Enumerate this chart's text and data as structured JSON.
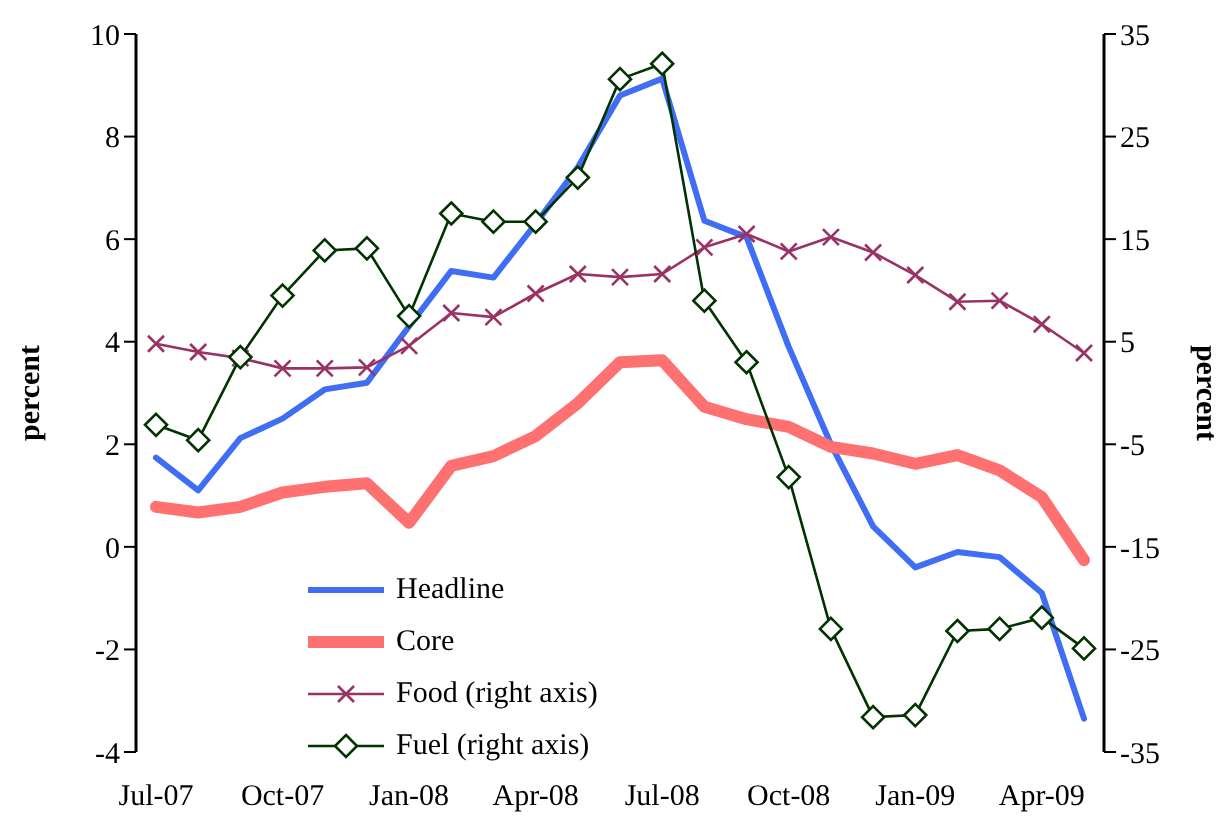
{
  "chart_data": {
    "type": "line",
    "ylabel": "percent",
    "y2label": "percent",
    "categories": [
      "Jul-07",
      null,
      null,
      "Oct-07",
      null,
      null,
      "Jan-08",
      null,
      null,
      "Apr-08",
      null,
      null,
      "Jul-08",
      null,
      null,
      "Oct-08",
      null,
      null,
      "Jan-09",
      null,
      null,
      "Apr-09",
      null
    ],
    "series": [
      {
        "name": "Headline",
        "color": "#3f6ef5",
        "marker": "none",
        "values": [
          1.74,
          1.1,
          2.12,
          2.5,
          3.07,
          3.2,
          4.3,
          5.38,
          5.25,
          6.3,
          7.4,
          8.8,
          9.13,
          6.36,
          6.04,
          3.9,
          2.0,
          0.4,
          -0.4,
          -0.1,
          -0.2,
          -0.9,
          -3.35
        ]
      },
      {
        "name": "Core",
        "color": "#ff7070",
        "marker": "none",
        "values": [
          0.78,
          0.67,
          0.78,
          1.06,
          1.17,
          1.24,
          0.47,
          1.58,
          1.77,
          2.16,
          2.8,
          3.6,
          3.64,
          2.73,
          2.49,
          2.34,
          1.95,
          1.82,
          1.62,
          1.79,
          1.49,
          0.97,
          -0.26
        ]
      },
      {
        "name": "Food (right axis)",
        "color": "#993366",
        "marker": "cross",
        "axis": "y2",
        "values": [
          4.8,
          4.0,
          3.4,
          2.4,
          2.4,
          2.5,
          4.6,
          7.8,
          7.4,
          9.7,
          11.6,
          11.3,
          11.6,
          14.2,
          15.5,
          13.8,
          15.2,
          13.7,
          11.5,
          8.9,
          9.0,
          6.7,
          3.9
        ]
      },
      {
        "name": "Fuel (right axis)",
        "color": "#003300",
        "marker": "diamond",
        "axis": "y2",
        "values": [
          -3.1,
          -4.6,
          3.5,
          9.5,
          13.9,
          14.1,
          7.5,
          17.5,
          16.7,
          16.7,
          21.0,
          30.6,
          32.1,
          9.0,
          3.0,
          -8.2,
          -23.0,
          -31.6,
          -31.4,
          -23.2,
          -23.0,
          -21.9,
          -24.9
        ]
      }
    ],
    "ylim": [
      -4,
      10
    ],
    "yticks": [
      -4,
      -2,
      0,
      2,
      4,
      6,
      8,
      10
    ],
    "y2lim": [
      -35,
      35
    ],
    "y2ticks": [
      -35,
      -25,
      -15,
      -5,
      5,
      15,
      25,
      35
    ],
    "grid": false,
    "legend": "bottom left"
  }
}
